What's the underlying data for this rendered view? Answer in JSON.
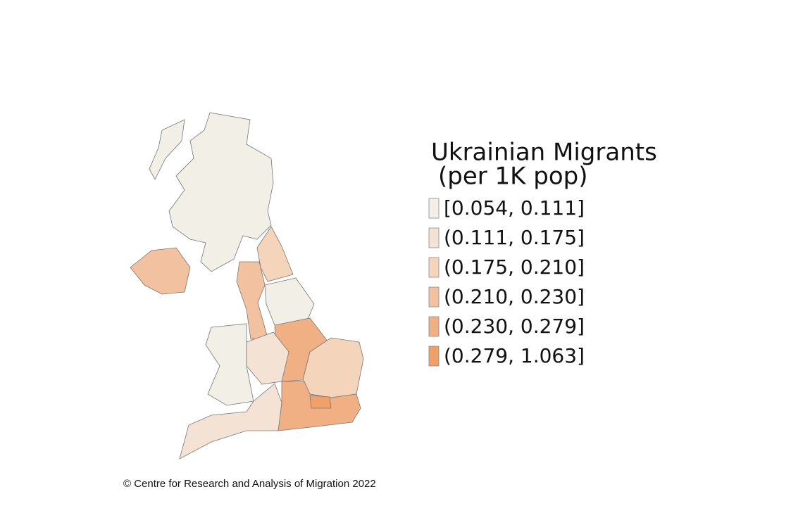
{
  "legend": {
    "title_lines": [
      "Ukrainian Migrants",
      "(per 1K pop)"
    ],
    "entries": [
      {
        "label": "[0.054, 0.111]",
        "color": "#f1efe6"
      },
      {
        "label": "(0.111, 0.175]",
        "color": "#f4e3d4"
      },
      {
        "label": "(0.175, 0.210]",
        "color": "#f4d4ba"
      },
      {
        "label": "(0.210, 0.230]",
        "color": "#f2c2a0"
      },
      {
        "label": "(0.230, 0.279]",
        "color": "#f1b083"
      },
      {
        "label": "(0.279, 1.063]",
        "color": "#f0a068"
      }
    ]
  },
  "credit": "© Centre for Research and Analysis of Migration 2022"
}
